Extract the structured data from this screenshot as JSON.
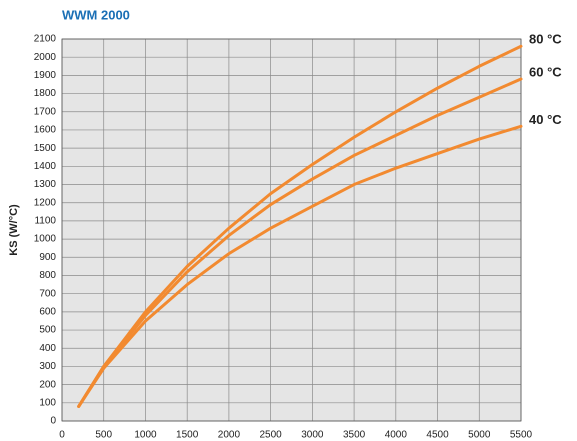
{
  "chart_data": {
    "type": "line",
    "title": "WWM 2000",
    "y_label": "KS (W/°C)",
    "x": [
      200,
      500,
      1000,
      1500,
      2000,
      2500,
      3000,
      3500,
      4000,
      4500,
      5000,
      5500
    ],
    "series": [
      {
        "name": "80 °C",
        "color": "#f28a30",
        "values": [
          80,
          300,
          600,
          850,
          1060,
          1250,
          1410,
          1560,
          1700,
          1830,
          1950,
          2060
        ]
      },
      {
        "name": "60 °C",
        "color": "#f28a30",
        "values": [
          80,
          300,
          580,
          820,
          1020,
          1190,
          1330,
          1460,
          1570,
          1680,
          1780,
          1880
        ]
      },
      {
        "name": "40 °C",
        "color": "#f28a30",
        "values": [
          80,
          290,
          550,
          750,
          920,
          1060,
          1180,
          1300,
          1390,
          1470,
          1550,
          1620
        ]
      }
    ],
    "xlim": [
      0,
      5500
    ],
    "xticks": [
      0,
      500,
      1000,
      1500,
      2000,
      2500,
      3000,
      3500,
      4000,
      4500,
      5000,
      5500
    ],
    "ylim": [
      0,
      2100
    ],
    "yticks": [
      0,
      100,
      200,
      300,
      400,
      500,
      600,
      700,
      800,
      900,
      1000,
      1100,
      1200,
      1300,
      1400,
      1500,
      1600,
      1700,
      1800,
      1900,
      2000,
      2100
    ],
    "grid": true
  }
}
